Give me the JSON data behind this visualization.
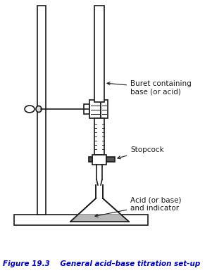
{
  "bg_color": "#ffffff",
  "black": "#1a1a1a",
  "gray_fill": "#b8b8b8",
  "dark_gray": "#555555",
  "title_color": "#0000cc",
  "title_text": "Figure 19.3    General acid–base titration set-up",
  "label_buret": "Buret containing\nbase (or acid)",
  "label_stopcock": "Stopcock",
  "label_acid": "Acid (or base)\nand indicator",
  "figsize": [
    3.01,
    3.88
  ],
  "dpi": 100
}
